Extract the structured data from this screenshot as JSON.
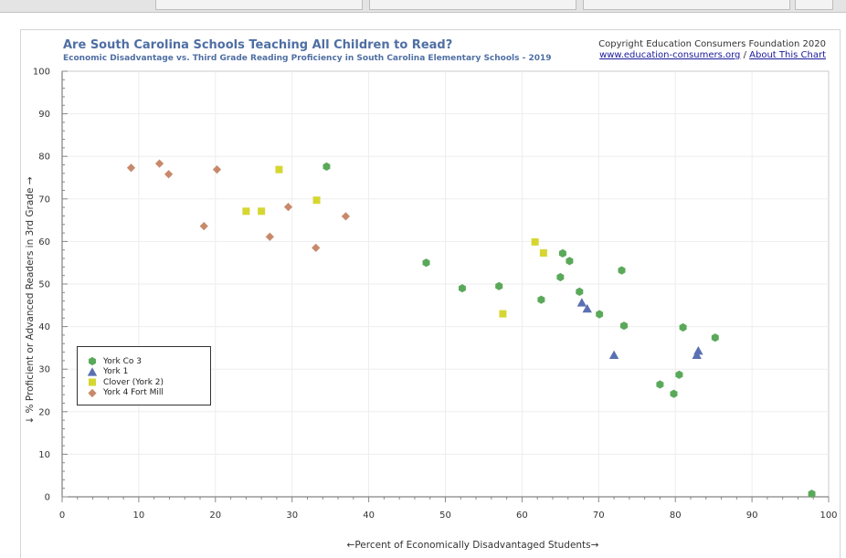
{
  "header": {
    "title": "Are South Carolina Schools Teaching All Children to Read?",
    "subtitle": "Economic Disadvantage vs. Third Grade Reading Proficiency in South Carolina Elementary Schools - 2019",
    "copyright": "Copyright Education Consumers Foundation 2020",
    "link_site": "www.education-consumers.org",
    "link_sep": "/",
    "link_about": "About This Chart"
  },
  "chart_data": {
    "type": "scatter",
    "title": "Are South Carolina Schools Teaching All Children to Read?",
    "subtitle": "Economic Disadvantage vs. Third Grade Reading Proficiency in South Carolina Elementary Schools - 2019",
    "xlabel": "←Percent of Economically Disadvantaged Students→",
    "ylabel": "↓ % Proficient or Advanced Readers in 3rd Grade →",
    "xlim": [
      0,
      100
    ],
    "ylim": [
      0,
      100
    ],
    "xticks": [
      "0",
      "10",
      "20",
      "30",
      "40",
      "50",
      "60",
      "70",
      "80",
      "90",
      "100"
    ],
    "yticks": [
      "0",
      "10",
      "20",
      "30",
      "40",
      "50",
      "60",
      "70",
      "80",
      "90",
      "100"
    ],
    "grid": true,
    "legend_position": "lower-left",
    "series": [
      {
        "name": "York Co 3",
        "marker": "hexagon",
        "color": "#5aa95a",
        "points": [
          [
            34.5,
            77.6
          ],
          [
            47.5,
            55.0
          ],
          [
            52.2,
            49.0
          ],
          [
            57.0,
            49.5
          ],
          [
            62.5,
            46.3
          ],
          [
            65.3,
            57.2
          ],
          [
            66.2,
            55.4
          ],
          [
            65.0,
            51.6
          ],
          [
            67.5,
            48.2
          ],
          [
            70.1,
            42.9
          ],
          [
            73.0,
            53.2
          ],
          [
            73.3,
            40.2
          ],
          [
            81.0,
            39.8
          ],
          [
            85.2,
            37.4
          ],
          [
            78.0,
            26.4
          ],
          [
            79.8,
            24.2
          ],
          [
            80.5,
            28.7
          ],
          [
            97.8,
            0.7
          ]
        ]
      },
      {
        "name": "York 1",
        "marker": "triangle",
        "color": "#5b70b2",
        "points": [
          [
            67.8,
            45.6
          ],
          [
            68.5,
            44.2
          ],
          [
            72.0,
            33.3
          ],
          [
            82.8,
            33.3
          ],
          [
            83.0,
            34.3
          ]
        ]
      },
      {
        "name": "Clover (York 2)",
        "marker": "square",
        "color": "#d6d633",
        "points": [
          [
            24.0,
            67.1
          ],
          [
            26.0,
            67.1
          ],
          [
            28.3,
            76.9
          ],
          [
            33.2,
            69.7
          ],
          [
            57.5,
            43.0
          ],
          [
            61.7,
            59.9
          ],
          [
            62.8,
            57.3
          ]
        ]
      },
      {
        "name": "York 4 Fort Mill",
        "marker": "diamond",
        "color": "#c8896a",
        "points": [
          [
            9.0,
            77.3
          ],
          [
            12.7,
            78.3
          ],
          [
            13.9,
            75.8
          ],
          [
            20.2,
            76.9
          ],
          [
            18.5,
            63.6
          ],
          [
            27.1,
            61.1
          ],
          [
            29.5,
            68.1
          ],
          [
            33.1,
            58.5
          ],
          [
            37.0,
            65.9
          ]
        ]
      }
    ]
  }
}
